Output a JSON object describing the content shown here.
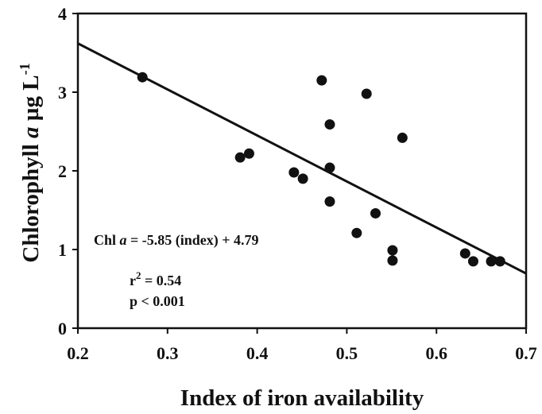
{
  "chart_data": {
    "type": "scatter",
    "title": "",
    "xlabel": "Index of iron availability",
    "ylabel": {
      "main": "Chlorophyll ",
      "italic": "a",
      "unit": " µg L",
      "sup": "-1"
    },
    "xlim": [
      0.2,
      0.7
    ],
    "ylim": [
      0,
      4
    ],
    "xticks": [
      "0.2",
      "0.3",
      "0.4",
      "0.5",
      "0.6",
      "0.7"
    ],
    "yticks": [
      "0",
      "1",
      "2",
      "3",
      "4"
    ],
    "grid": false,
    "points": [
      {
        "x": 0.272,
        "y": 3.19
      },
      {
        "x": 0.381,
        "y": 2.17
      },
      {
        "x": 0.391,
        "y": 2.22
      },
      {
        "x": 0.441,
        "y": 1.98
      },
      {
        "x": 0.451,
        "y": 1.9
      },
      {
        "x": 0.472,
        "y": 3.15
      },
      {
        "x": 0.481,
        "y": 2.59
      },
      {
        "x": 0.481,
        "y": 2.04
      },
      {
        "x": 0.481,
        "y": 1.61
      },
      {
        "x": 0.511,
        "y": 1.21
      },
      {
        "x": 0.522,
        "y": 2.98
      },
      {
        "x": 0.532,
        "y": 1.46
      },
      {
        "x": 0.551,
        "y": 0.99
      },
      {
        "x": 0.551,
        "y": 0.86
      },
      {
        "x": 0.562,
        "y": 2.42
      },
      {
        "x": 0.632,
        "y": 0.95
      },
      {
        "x": 0.641,
        "y": 0.85
      },
      {
        "x": 0.661,
        "y": 0.85
      },
      {
        "x": 0.671,
        "y": 0.85
      }
    ],
    "fit_line": {
      "slope": -5.85,
      "intercept": 4.79
    },
    "annotations": {
      "equation": {
        "pre": "Chl ",
        "italic": "a",
        "post": " = -5.85 (index) + 4.79"
      },
      "r2": {
        "pre": "r",
        "sup": "2",
        "post": " = 0.54"
      },
      "p": "p < 0.001"
    },
    "colors": {
      "marker": "#111111",
      "line": "#111111",
      "axis": "#111111"
    }
  }
}
